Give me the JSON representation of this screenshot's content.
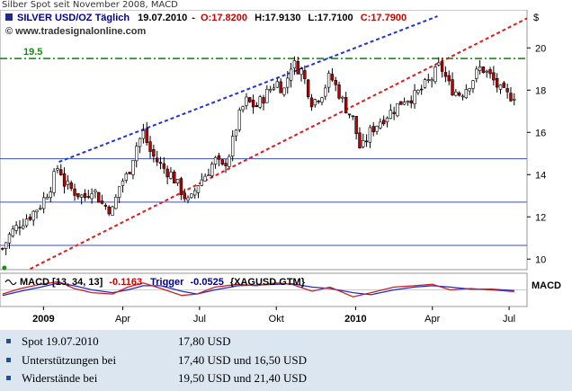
{
  "caption": "Silber Spot seit November 2008, MACD",
  "chart_data": {
    "type": "candlestick",
    "title": "SILVER USD/OZ Täglich",
    "date": "19.07.2010",
    "open_label": "O:17.8200",
    "high_label": "H:17.9130",
    "low_label": "L:17.7100",
    "close_label": "C:17.7900",
    "watermark": "© www.tradesignalonline.com",
    "currency_label": "$",
    "ylim": [
      9.5,
      21.8
    ],
    "y_ticks": [
      10,
      12,
      14,
      16,
      18,
      20
    ],
    "x_ticks": [
      "2009",
      "Apr",
      "Jul",
      "Okt",
      "2010",
      "Apr",
      "Jul"
    ],
    "x_tick_positions": [
      0.1,
      3.2,
      6.2,
      9.2,
      12.3,
      15.3,
      18.3
    ],
    "x_range": [
      -1.6,
      19.0
    ],
    "horizontal_lines": [
      14.75,
      12.7,
      10.65
    ],
    "resistance": {
      "value": 19.5,
      "label": "19.5"
    },
    "trend_lines": [
      {
        "kind": "upper",
        "points": [
          [
            0.7,
            14.6
          ],
          [
            15.5,
            21.5
          ]
        ]
      },
      {
        "kind": "lower",
        "points": [
          [
            -1.3,
            9.0
          ],
          [
            19.0,
            21.4
          ]
        ]
      }
    ],
    "price_path": [
      [
        -1.5,
        10.5
      ],
      [
        -1.2,
        11.2
      ],
      [
        -0.8,
        11.7
      ],
      [
        -0.4,
        12.1
      ],
      [
        0.0,
        12.6
      ],
      [
        0.4,
        13.5
      ],
      [
        0.7,
        14.5
      ],
      [
        0.9,
        13.6
      ],
      [
        1.3,
        13.2
      ],
      [
        1.7,
        12.9
      ],
      [
        2.0,
        13.4
      ],
      [
        2.4,
        12.6
      ],
      [
        2.8,
        12.3
      ],
      [
        3.1,
        13.6
      ],
      [
        3.4,
        14.0
      ],
      [
        3.7,
        15.3
      ],
      [
        4.0,
        16.0
      ],
      [
        4.3,
        15.0
      ],
      [
        4.7,
        14.4
      ],
      [
        5.1,
        14.0
      ],
      [
        5.5,
        13.2
      ],
      [
        5.8,
        12.6
      ],
      [
        6.1,
        13.5
      ],
      [
        6.5,
        14.1
      ],
      [
        6.8,
        14.7
      ],
      [
        7.1,
        14.3
      ],
      [
        7.4,
        15.1
      ],
      [
        7.7,
        16.6
      ],
      [
        8.0,
        17.5
      ],
      [
        8.4,
        17.2
      ],
      [
        8.8,
        17.8
      ],
      [
        9.2,
        18.4
      ],
      [
        9.5,
        18.0
      ],
      [
        9.8,
        19.3
      ],
      [
        10.2,
        18.9
      ],
      [
        10.6,
        17.4
      ],
      [
        11.0,
        17.9
      ],
      [
        11.3,
        18.7
      ],
      [
        11.6,
        18.0
      ],
      [
        11.9,
        17.2
      ],
      [
        12.2,
        16.6
      ],
      [
        12.5,
        15.1
      ],
      [
        12.9,
        16.1
      ],
      [
        13.3,
        16.6
      ],
      [
        13.8,
        17.1
      ],
      [
        14.2,
        17.6
      ],
      [
        14.6,
        17.7
      ],
      [
        15.0,
        18.2
      ],
      [
        15.3,
        18.6
      ],
      [
        15.6,
        19.2
      ],
      [
        16.0,
        18.1
      ],
      [
        16.4,
        17.8
      ],
      [
        16.8,
        18.4
      ],
      [
        17.2,
        19.1
      ],
      [
        17.6,
        18.6
      ],
      [
        18.0,
        17.9
      ],
      [
        18.3,
        17.7
      ],
      [
        18.5,
        17.8
      ]
    ],
    "macd": {
      "label": "MACD [13, 34, 13]",
      "value": "-0.1163",
      "trigger_label": "Trigger",
      "trigger_value": "-0.0525",
      "symbol": "{XAGUSD GTM}",
      "axis_label": "MACD",
      "ylim": [
        -1.2,
        1.2
      ],
      "macd_points": [
        [
          -1.5,
          -0.3
        ],
        [
          -0.8,
          0.1
        ],
        [
          0.0,
          0.4
        ],
        [
          0.7,
          0.6
        ],
        [
          1.3,
          0.1
        ],
        [
          2.0,
          -0.2
        ],
        [
          2.8,
          -0.3
        ],
        [
          3.4,
          0.2
        ],
        [
          4.0,
          0.5
        ],
        [
          4.7,
          0.1
        ],
        [
          5.5,
          -0.4
        ],
        [
          6.1,
          -0.3
        ],
        [
          6.8,
          0.2
        ],
        [
          7.7,
          0.4
        ],
        [
          8.4,
          0.3
        ],
        [
          9.2,
          0.5
        ],
        [
          9.8,
          0.4
        ],
        [
          10.6,
          -0.1
        ],
        [
          11.3,
          0.2
        ],
        [
          12.2,
          -0.5
        ],
        [
          12.9,
          -0.2
        ],
        [
          13.8,
          0.2
        ],
        [
          14.6,
          0.3
        ],
        [
          15.3,
          0.4
        ],
        [
          16.0,
          0.0
        ],
        [
          16.8,
          0.1
        ],
        [
          17.6,
          0.0
        ],
        [
          18.5,
          -0.12
        ]
      ],
      "trigger_points": [
        [
          -1.5,
          -0.4
        ],
        [
          -0.8,
          -0.1
        ],
        [
          0.0,
          0.2
        ],
        [
          0.7,
          0.5
        ],
        [
          1.3,
          0.3
        ],
        [
          2.0,
          0.0
        ],
        [
          2.8,
          -0.2
        ],
        [
          3.4,
          0.0
        ],
        [
          4.0,
          0.3
        ],
        [
          4.7,
          0.3
        ],
        [
          5.5,
          -0.1
        ],
        [
          6.1,
          -0.3
        ],
        [
          6.8,
          0.0
        ],
        [
          7.7,
          0.3
        ],
        [
          8.4,
          0.35
        ],
        [
          9.2,
          0.4
        ],
        [
          9.8,
          0.45
        ],
        [
          10.6,
          0.2
        ],
        [
          11.3,
          0.1
        ],
        [
          12.2,
          -0.2
        ],
        [
          12.9,
          -0.35
        ],
        [
          13.8,
          0.0
        ],
        [
          14.6,
          0.2
        ],
        [
          15.3,
          0.3
        ],
        [
          16.0,
          0.2
        ],
        [
          16.8,
          0.05
        ],
        [
          17.6,
          0.05
        ],
        [
          18.5,
          -0.05
        ]
      ]
    }
  },
  "info": [
    {
      "label": "Spot 19.07.2010",
      "value": "17,80 USD"
    },
    {
      "label": "Unterstützungen bei",
      "value": "17,40 USD und 16,50 USD"
    },
    {
      "label": "Widerstände bei",
      "value": "19,50 USD und 21,40 USD"
    }
  ],
  "colors": {
    "title": "#00008b",
    "ohlc": "#cc0000",
    "upper_trend": "#1f33d6",
    "lower_trend": "#e0191c",
    "resistance": "#1a8a1a",
    "hline": "#3a4fb0",
    "macd_line": "#d41c1c",
    "trigger_line": "#1b2ed3",
    "candle_up": "#ffffff",
    "candle_down": "#c00000"
  }
}
